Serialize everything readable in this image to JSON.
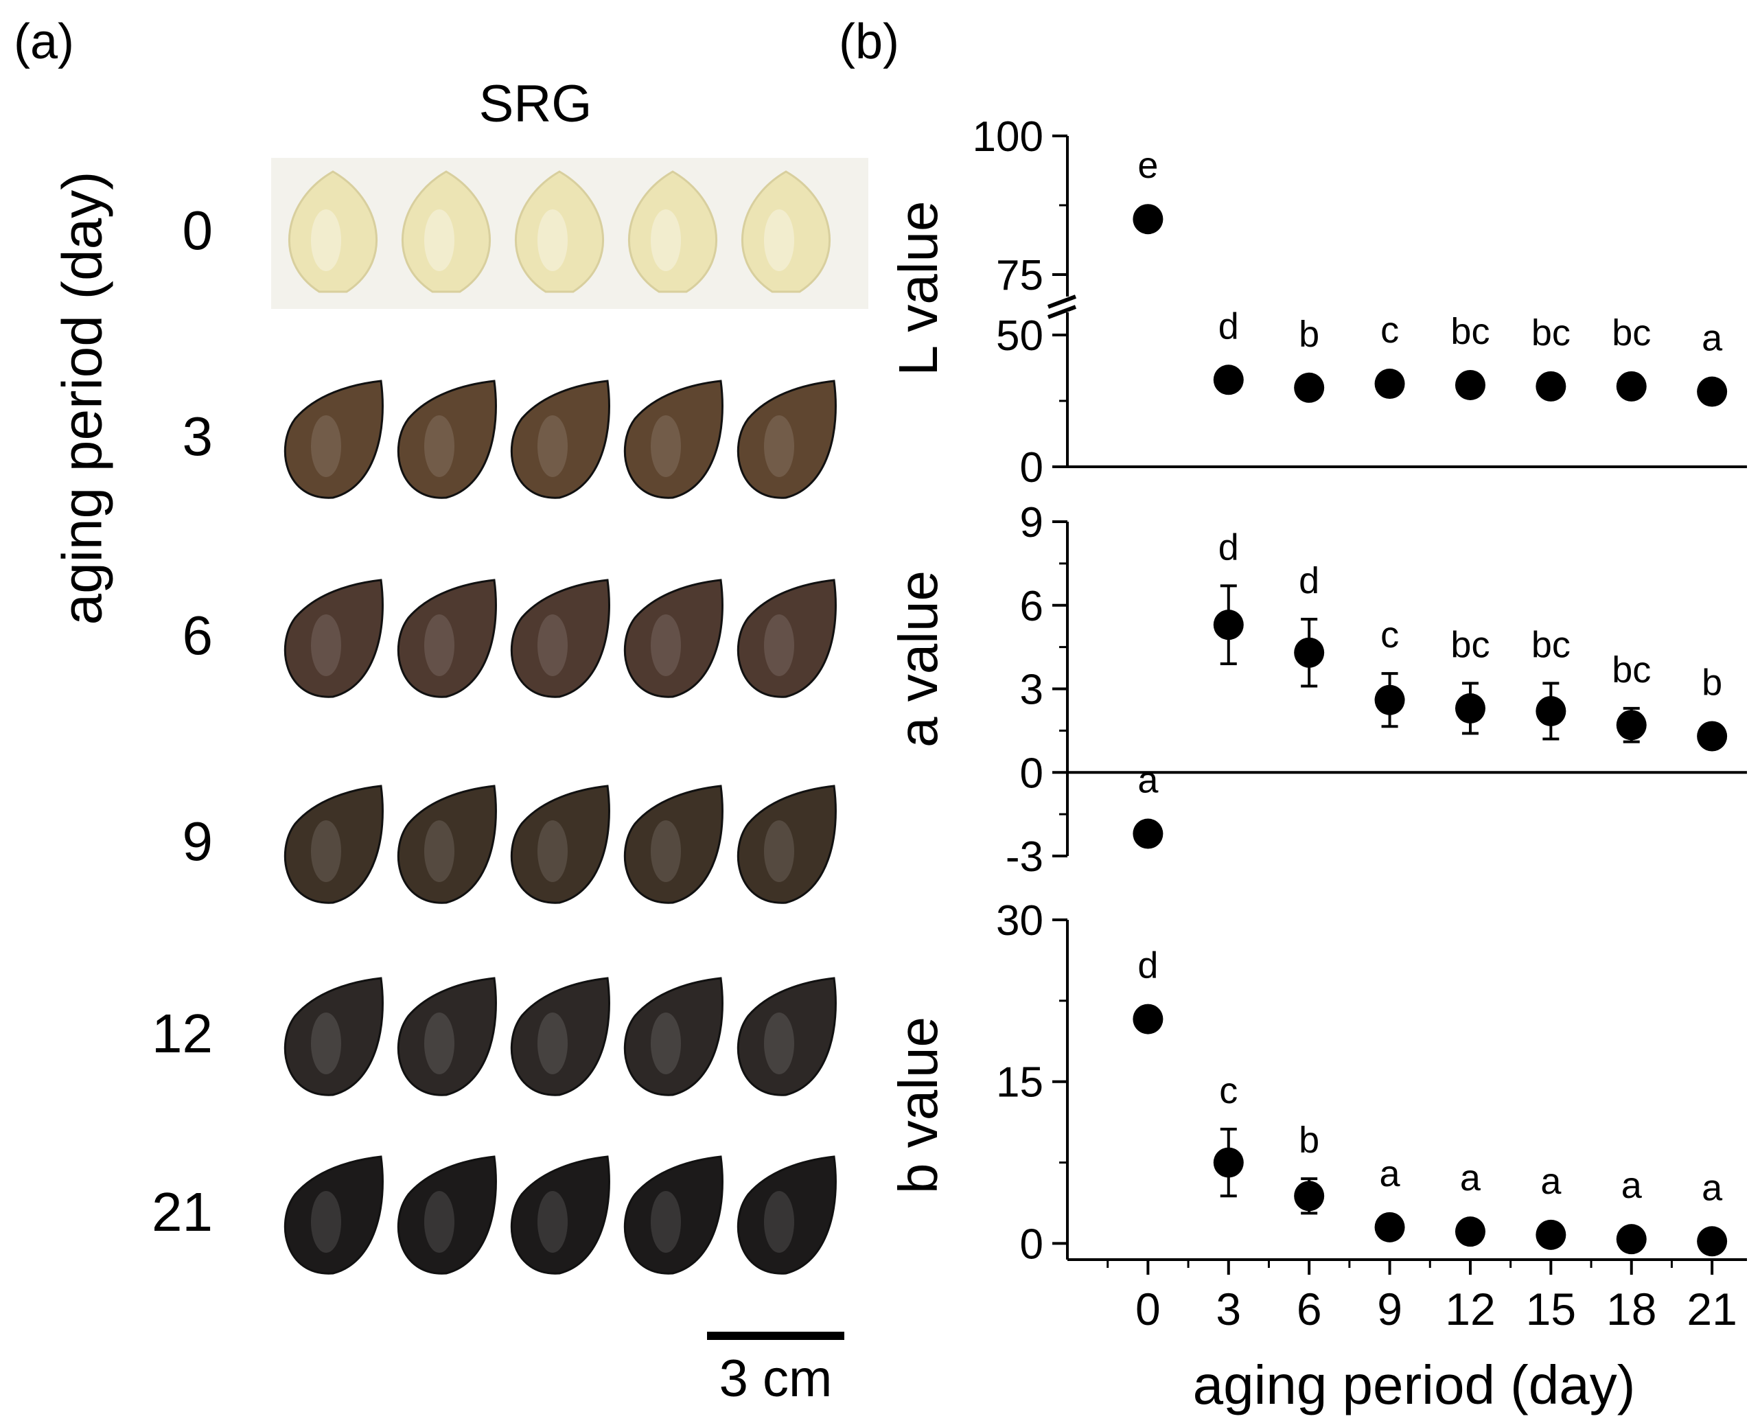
{
  "panels": {
    "left_label": "(a)",
    "right_label": "(b)"
  },
  "photo": {
    "title": "SRG",
    "y_title": "aging period (day)",
    "rows": [
      {
        "label": "0",
        "color": "#ece4b4"
      },
      {
        "label": "3",
        "color": "#5f4630"
      },
      {
        "label": "6",
        "color": "#4f3a30"
      },
      {
        "label": "9",
        "color": "#3e3226"
      },
      {
        "label": "12",
        "color": "#2d2826"
      },
      {
        "label": "21",
        "color": "#1c1a1a"
      }
    ],
    "scale_bar": {
      "label": "3 cm"
    }
  },
  "chart_data": {
    "type": "scatter",
    "x": [
      0,
      3,
      6,
      9,
      12,
      15,
      18,
      21
    ],
    "xlabel": "aging period (day)",
    "xticks": [
      "0",
      "3",
      "6",
      "9",
      "12",
      "15",
      "18",
      "21"
    ],
    "xlim": [
      -3,
      22.3
    ],
    "marker_color": "#000000",
    "panels": [
      {
        "name": "L",
        "ylabel": "L value",
        "broken_axis": true,
        "segments": [
          {
            "ylim": [
              0,
              50
            ],
            "ticks": [
              "0",
              "50"
            ]
          },
          {
            "ylim": [
              75,
              100
            ],
            "ticks": [
              "75",
              "100"
            ]
          }
        ],
        "values": [
          85,
          33,
          30,
          31.5,
          31,
          30.5,
          30.5,
          28.5
        ],
        "errors": [
          0,
          0,
          0,
          0,
          0,
          0,
          0,
          0
        ],
        "letters": [
          "e",
          "d",
          "b",
          "c",
          "bc",
          "bc",
          "bc",
          "a"
        ]
      },
      {
        "name": "a",
        "ylabel": "a value",
        "ylim": [
          -3,
          9
        ],
        "ticks": [
          "-3",
          "0",
          "3",
          "6",
          "9"
        ],
        "values": [
          -2.2,
          5.3,
          4.3,
          2.6,
          2.3,
          2.2,
          1.7,
          1.3
        ],
        "errors": [
          0,
          1.4,
          1.2,
          0.95,
          0.9,
          1.0,
          0.6,
          0
        ],
        "letters": [
          "a",
          "d",
          "d",
          "c",
          "bc",
          "bc",
          "bc",
          "b"
        ]
      },
      {
        "name": "b",
        "ylabel": "b value",
        "ylim": [
          -1.5,
          30
        ],
        "ticks": [
          "0",
          "15",
          "30"
        ],
        "values": [
          20.8,
          7.5,
          4.4,
          1.5,
          1.1,
          0.8,
          0.4,
          0.2
        ],
        "errors": [
          0,
          3.1,
          1.6,
          0,
          0,
          0,
          0,
          0
        ],
        "letters": [
          "d",
          "c",
          "b",
          "a",
          "a",
          "a",
          "a",
          "a"
        ]
      }
    ]
  }
}
